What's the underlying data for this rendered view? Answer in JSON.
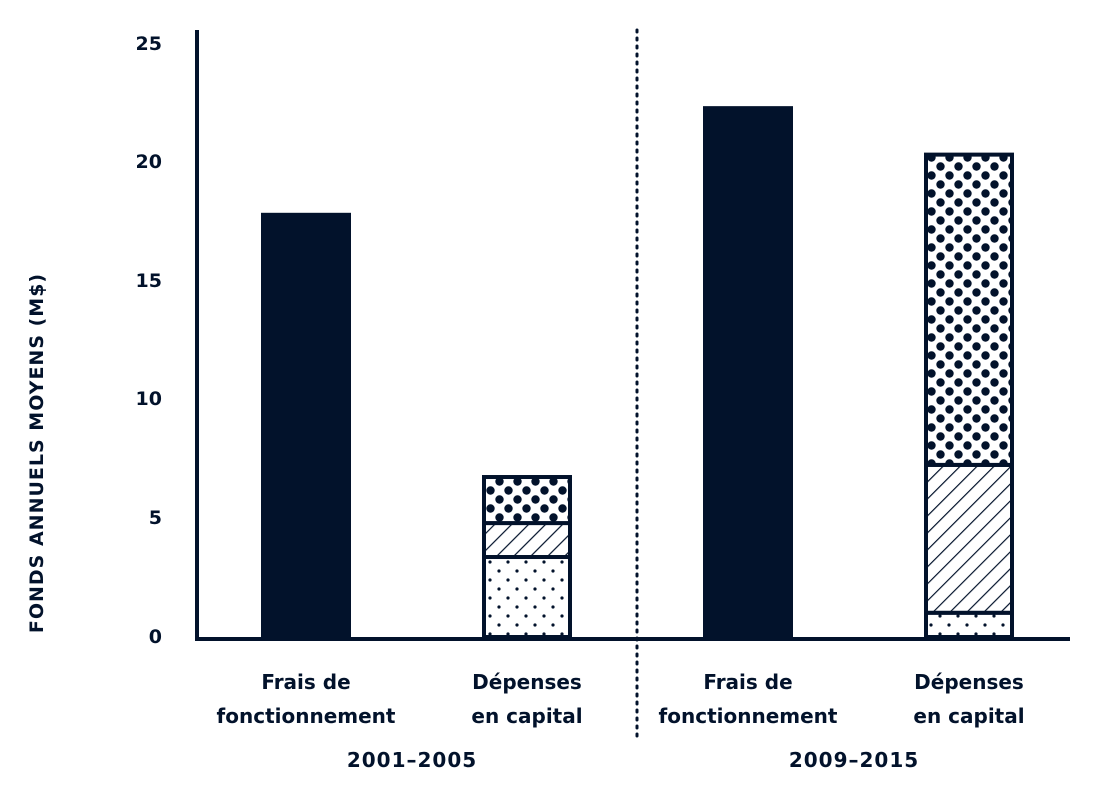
{
  "chart_data": {
    "type": "bar",
    "title": "",
    "xlabel": "",
    "ylabel": "FONDS ANNUELS MOYENS (M$)",
    "ylim": [
      0,
      25
    ],
    "yticks": [
      "0",
      "5",
      "10",
      "15",
      "20",
      "25"
    ],
    "grid": false,
    "colors": {
      "primary": "#02122b",
      "background": "#ffffff"
    },
    "groups": [
      {
        "label": "2001–2005",
        "bars": [
          {
            "label_line1": "Frais de",
            "label_line2": "fonctionnement",
            "style": "solid",
            "segments": [
              {
                "value": 17.5,
                "pattern": "solid"
              }
            ]
          },
          {
            "label_line1": "Dépenses",
            "label_line2": "en capital",
            "style": "stacked",
            "segments": [
              {
                "value": 3.3,
                "pattern": "small-dots"
              },
              {
                "value": 1.4,
                "pattern": "hatch"
              },
              {
                "value": 1.9,
                "pattern": "large-dots"
              }
            ]
          }
        ]
      },
      {
        "label": "2009–2015",
        "bars": [
          {
            "label_line1": "Frais de",
            "label_line2": "fonctionnement",
            "style": "solid",
            "segments": [
              {
                "value": 21.9,
                "pattern": "solid"
              }
            ]
          },
          {
            "label_line1": "Dépenses",
            "label_line2": "en capital",
            "style": "stacked",
            "segments": [
              {
                "value": 1.0,
                "pattern": "small-dots"
              },
              {
                "value": 6.1,
                "pattern": "hatch"
              },
              {
                "value": 12.8,
                "pattern": "large-dots"
              }
            ]
          }
        ]
      }
    ]
  }
}
